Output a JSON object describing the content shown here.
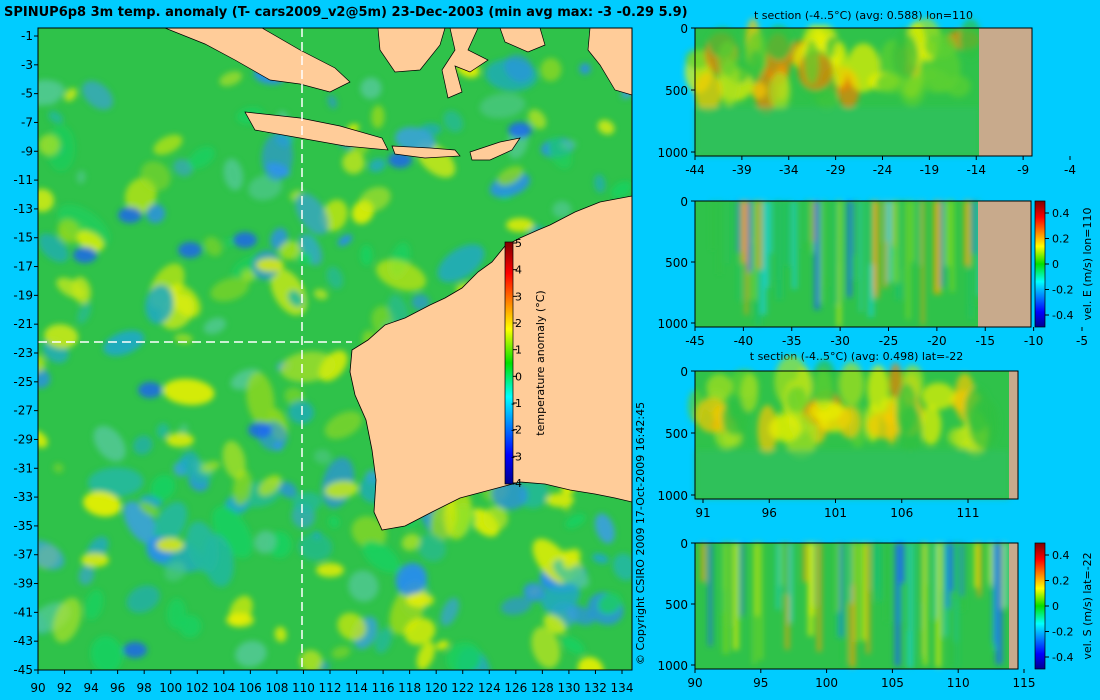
{
  "map": {
    "title": "SPINUP6p8 3m temp. anomaly (T- cars2009_v2@5m) 23-Dec-2003 (min avg max: -3 -0.29 5.9)",
    "lat_labels": [
      "-1",
      "-3",
      "-5",
      "-7",
      "-9",
      "-11",
      "-13",
      "-15",
      "-17",
      "-19",
      "-21",
      "-23",
      "-25",
      "-27",
      "-29",
      "-31",
      "-33",
      "-35",
      "-37",
      "-39",
      "-41",
      "-43",
      "-45"
    ],
    "lon_labels": [
      "90",
      "92",
      "94",
      "96",
      "98",
      "100",
      "102",
      "104",
      "106",
      "108",
      "110",
      "112",
      "114",
      "116",
      "118",
      "120",
      "122",
      "124",
      "126",
      "128",
      "130",
      "132",
      "134"
    ],
    "section_lon": 110,
    "section_lat": -22,
    "colorbar": {
      "label": "temperature anomaly (°C)",
      "ticks": [
        "5",
        "4",
        "3",
        "2",
        "1",
        "0",
        "-1",
        "-2",
        "-3",
        "-4"
      ]
    },
    "copyright": "© Copyright CSIRO 2009   17-Oct-2009 16:42:45"
  },
  "panels": [
    {
      "id": "t-section-lon",
      "title": "t section (-4..5°C) (avg: 0.588) lon=110",
      "depth_ticks": [
        "0",
        "500",
        "1000"
      ],
      "x_ticks": [
        "-44",
        "-39",
        "-34",
        "-29",
        "-24",
        "-19",
        "-14",
        "-9",
        "-4"
      ],
      "colorbar": null
    },
    {
      "id": "vel-e-section",
      "title": "",
      "depth_ticks": [
        "0",
        "500",
        "1000"
      ],
      "x_ticks": [
        "-45",
        "-40",
        "-35",
        "-30",
        "-25",
        "-20",
        "-15",
        "-10",
        "-5"
      ],
      "colorbar": {
        "label": "vel. E (m/s) lon=110",
        "ticks": [
          "0.4",
          "0.2",
          "0",
          "-0.2",
          "-0.4"
        ]
      }
    },
    {
      "id": "t-section-lat",
      "title": "t section (-4..5°C) (avg: 0.498) lat=-22",
      "depth_ticks": [
        "0",
        "500",
        "1000"
      ],
      "x_ticks": [
        "91",
        "96",
        "101",
        "106",
        "111"
      ],
      "colorbar": null
    },
    {
      "id": "vel-s-section",
      "title": "",
      "depth_ticks": [
        "0",
        "500",
        "1000"
      ],
      "x_ticks": [
        "90",
        "95",
        "100",
        "105",
        "110",
        "115"
      ],
      "colorbar": {
        "label": "vel. S (m/s) lat=-22",
        "ticks": [
          "0.4",
          "0.2",
          "0",
          "-0.2",
          "-0.4"
        ]
      }
    }
  ],
  "colors": {
    "background": "#00ccff",
    "land": "#ffcc99",
    "section_land": "#c8aa8c",
    "ocean": "#2fc24a"
  }
}
